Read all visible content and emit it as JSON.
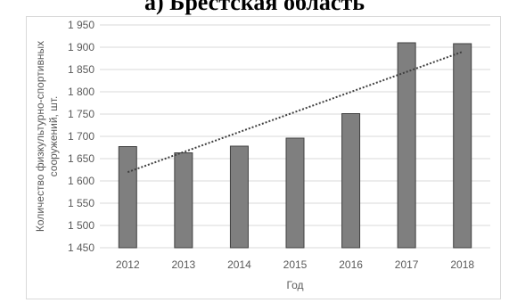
{
  "chart_data": {
    "type": "bar",
    "title": "а) Брестская область",
    "xlabel": "Год",
    "ylabel": "Количество физкультурно-спортивных сооружений, шт.",
    "categories": [
      "2012",
      "2013",
      "2014",
      "2015",
      "2016",
      "2017",
      "2018"
    ],
    "values": [
      1677,
      1663,
      1678,
      1696,
      1751,
      1910,
      1908
    ],
    "ylim": [
      1450,
      1950
    ],
    "yticks": [
      1450,
      1500,
      1550,
      1600,
      1650,
      1700,
      1750,
      1800,
      1850,
      1900,
      1950
    ],
    "ytick_labels": [
      "1 450",
      "1 500",
      "1 550",
      "1 600",
      "1 650",
      "1 700",
      "1 750",
      "1 800",
      "1 850",
      "1 900",
      "1 950"
    ],
    "trendline": {
      "type": "linear",
      "style": "dotted",
      "color": "#404040"
    },
    "bar_color": "#7f7f7f",
    "bar_edge_color": "#404040",
    "grid": true,
    "grid_color": "#d9d9d9",
    "legend": false
  }
}
